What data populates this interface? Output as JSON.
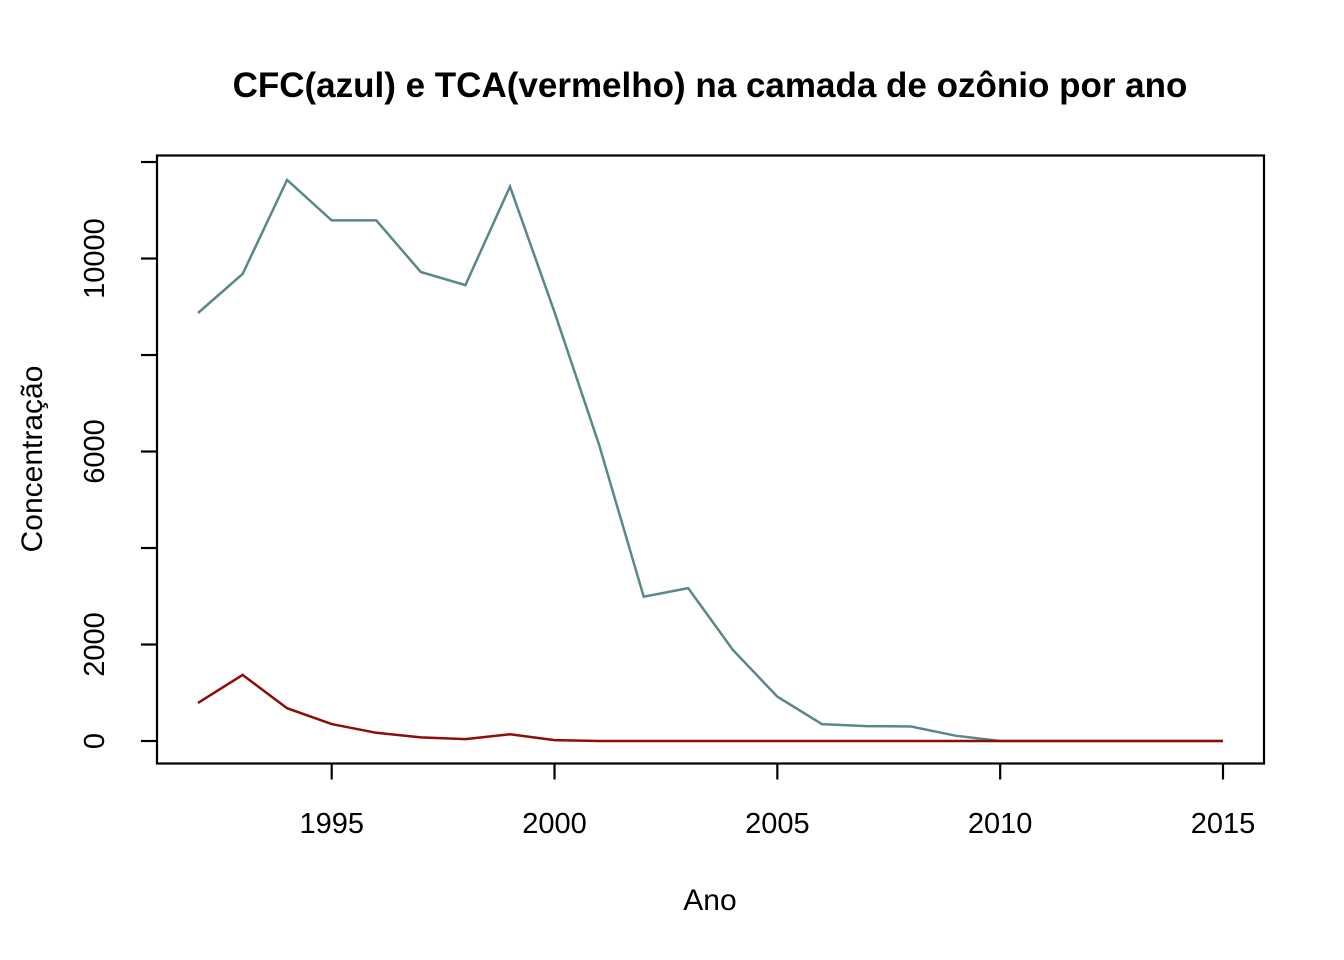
{
  "page": {
    "background": "#ffffff"
  },
  "chart_data": {
    "type": "line",
    "title": "CFC(azul) e TCA(vermelho) na camada de ozônio por ano",
    "xlabel": "Ano",
    "ylabel": "Concentração",
    "grid": false,
    "legend_position": "none",
    "axis_color": "#000000",
    "background": "#ffffff",
    "x_range": [
      1991.08,
      2015.92
    ],
    "y_range": [
      -466,
      12135
    ],
    "x": [
      1992,
      1993,
      1994,
      1995,
      1996,
      1997,
      1998,
      1999,
      2000,
      2001,
      2002,
      2003,
      2004,
      2005,
      2006,
      2007,
      2008,
      2009,
      2010,
      2011,
      2012,
      2013,
      2014,
      2015
    ],
    "series": [
      {
        "name": "CFC",
        "color_name": "azul",
        "color": "#5a878c",
        "values": [
          8870,
          9680,
          11630,
          10790,
          10790,
          9720,
          9450,
          11490,
          8890,
          6140,
          2990,
          3170,
          1890,
          920,
          350,
          310,
          300,
          110,
          0,
          0,
          0,
          0,
          0,
          0
        ]
      },
      {
        "name": "TCA",
        "color_name": "vermelho",
        "color": "#8b0f04",
        "values": [
          790,
          1370,
          680,
          350,
          170,
          75,
          40,
          140,
          20,
          0,
          0,
          0,
          0,
          0,
          0,
          0,
          0,
          0,
          0,
          0,
          0,
          0,
          0,
          0
        ]
      }
    ],
    "x_ticks": [
      {
        "v": 1995,
        "label": "1995"
      },
      {
        "v": 2000,
        "label": "2000"
      },
      {
        "v": 2005,
        "label": "2005"
      },
      {
        "v": 2010,
        "label": "2010"
      },
      {
        "v": 2015,
        "label": "2015"
      }
    ],
    "y_ticks": [
      {
        "v": 0,
        "label": "0"
      },
      {
        "v": 2000,
        "label": "2000"
      },
      {
        "v": 4000,
        "label": ""
      },
      {
        "v": 6000,
        "label": "6000"
      },
      {
        "v": 8000,
        "label": ""
      },
      {
        "v": 10000,
        "label": "10000"
      },
      {
        "v": 12000,
        "label": ""
      }
    ]
  }
}
